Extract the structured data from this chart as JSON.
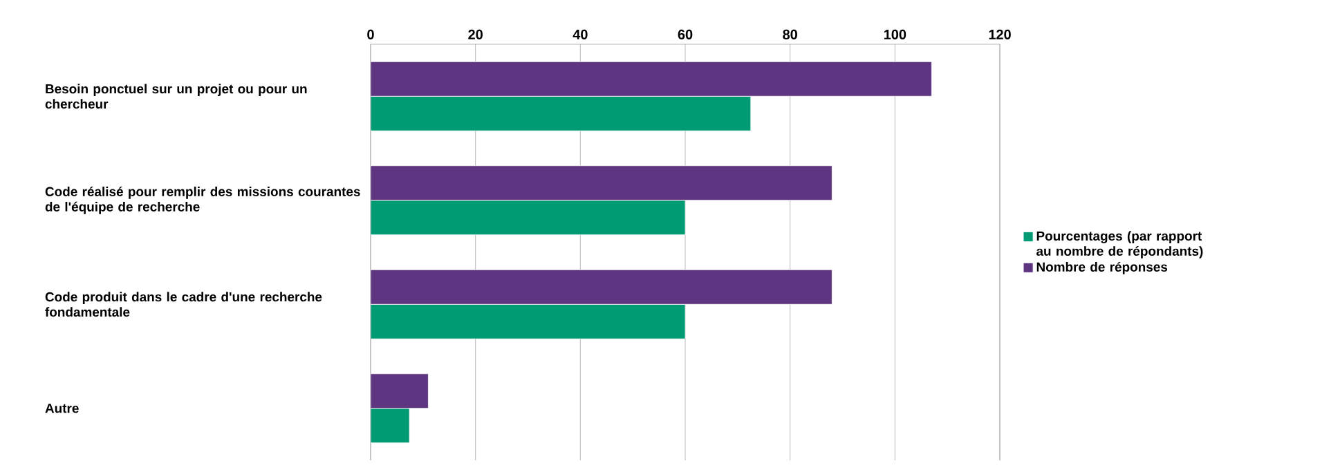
{
  "chart_data": {
    "type": "bar",
    "orientation": "horizontal",
    "categories": [
      "Besoin ponctuel sur un projet ou pour un chercheur",
      "Code réalisé pour remplir des missions courantes de l'équipe de recherche",
      "Code produit dans le cadre d'une recherche fondamentale",
      "Autre"
    ],
    "series": [
      {
        "name": "Pourcentages (par rapport au nombre de répondants)",
        "color": "#009b72",
        "values": [
          72.5,
          60,
          60,
          7.4
        ]
      },
      {
        "name": "Nombre de réponses",
        "color": "#5e3581",
        "values": [
          107,
          88,
          88,
          11
        ]
      }
    ],
    "xlim": [
      0,
      120
    ],
    "xticks": [
      0,
      20,
      40,
      60,
      80,
      100,
      120
    ],
    "grid": "x",
    "legend": "right"
  }
}
